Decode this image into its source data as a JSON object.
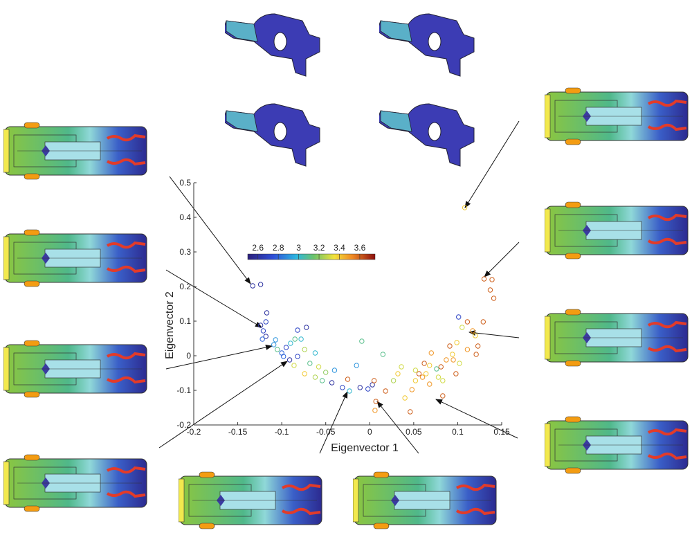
{
  "chart_data": {
    "type": "scatter",
    "x_label": "Eigenvector 1",
    "y_label": "Eigenvector 2",
    "xlim": [
      -0.2,
      0.15
    ],
    "ylim": [
      -0.2,
      0.5
    ],
    "xticks": [
      -0.2,
      -0.15,
      -0.1,
      -0.05,
      0,
      0.05,
      0.1,
      0.15
    ],
    "yticks": [
      -0.2,
      -0.1,
      0,
      0.1,
      0.2,
      0.3,
      0.4,
      0.5
    ],
    "colorbar": {
      "lim": [
        2.5,
        3.75
      ],
      "ticks": [
        2.6,
        2.8,
        3,
        3.2,
        3.4,
        3.6
      ]
    },
    "x": [
      -0.133,
      -0.124,
      0.108,
      0.13,
      0.139,
      0.137,
      0.141,
      -0.117,
      -0.118,
      -0.124,
      -0.121,
      -0.118,
      -0.122,
      -0.107,
      -0.109,
      -0.105,
      -0.1,
      -0.095,
      -0.09,
      -0.085,
      -0.072,
      -0.082,
      -0.078,
      -0.074,
      -0.082,
      -0.091,
      -0.098,
      -0.086,
      -0.074,
      -0.068,
      -0.062,
      -0.058,
      -0.062,
      -0.05,
      -0.054,
      -0.04,
      -0.043,
      -0.031,
      -0.023,
      -0.025,
      -0.015,
      -0.011,
      -0.009,
      -0.002,
      0.003,
      0.005,
      0.007,
      0.006,
      0.015,
      0.018,
      0.027,
      0.032,
      0.036,
      0.04,
      0.046,
      0.048,
      0.052,
      0.056,
      0.052,
      0.06,
      0.062,
      0.068,
      0.068,
      0.076,
      0.078,
      0.081,
      0.07,
      0.083,
      0.087,
      0.091,
      0.094,
      0.098,
      0.099,
      0.101,
      0.105,
      0.111,
      0.117,
      0.12,
      0.123,
      0.129,
      0.111,
      0.121,
      0.095,
      0.102,
      0.064,
      0.083
    ],
    "values": [
      0.202,
      0.206,
      0.428,
      0.222,
      0.22,
      0.19,
      0.166,
      0.124,
      0.098,
      0.088,
      0.072,
      0.056,
      0.048,
      0.046,
      0.032,
      0.018,
      0.008,
      0.024,
      0.036,
      0.048,
      0.082,
      0.074,
      0.048,
      0.018,
      -0.002,
      -0.012,
      -0.002,
      -0.028,
      -0.052,
      -0.022,
      0.008,
      -0.032,
      -0.062,
      -0.048,
      -0.072,
      -0.042,
      -0.078,
      -0.092,
      -0.102,
      -0.068,
      -0.028,
      -0.092,
      0.042,
      -0.096,
      -0.084,
      -0.072,
      -0.132,
      -0.158,
      0.004,
      -0.102,
      -0.072,
      -0.052,
      -0.032,
      -0.122,
      -0.162,
      -0.098,
      -0.072,
      -0.052,
      -0.042,
      -0.062,
      -0.022,
      -0.028,
      -0.082,
      -0.038,
      -0.062,
      -0.032,
      0.008,
      -0.072,
      -0.012,
      0.028,
      0.004,
      -0.052,
      0.038,
      0.112,
      0.082,
      0.098,
      0.072,
      0.058,
      0.028,
      0.098,
      0.018,
      0.004,
      -0.012,
      -0.022,
      -0.052,
      -0.116
    ],
    "color_values": [
      2.6,
      2.6,
      3.4,
      3.6,
      3.6,
      3.6,
      3.6,
      2.6,
      2.7,
      2.6,
      2.7,
      2.6,
      2.8,
      2.9,
      2.9,
      3.1,
      2.8,
      2.7,
      3.0,
      3.1,
      2.6,
      2.7,
      3.0,
      3.25,
      2.7,
      2.6,
      2.8,
      3.3,
      3.4,
      3.1,
      3.0,
      3.3,
      3.25,
      3.2,
      3.1,
      2.9,
      2.6,
      2.7,
      3.0,
      3.6,
      2.9,
      2.6,
      3.1,
      2.7,
      2.6,
      3.6,
      3.6,
      3.5,
      3.1,
      3.6,
      3.25,
      3.4,
      3.3,
      3.4,
      3.6,
      3.5,
      3.4,
      3.6,
      3.3,
      3.5,
      3.6,
      3.4,
      3.5,
      3.1,
      3.3,
      3.6,
      3.5,
      3.3,
      3.5,
      3.6,
      3.4,
      3.6,
      3.4,
      2.7,
      3.3,
      3.6,
      3.5,
      3.4,
      3.6,
      3.6,
      3.5,
      3.6,
      3.5,
      3.3,
      3.4,
      3.6
    ]
  }
}
